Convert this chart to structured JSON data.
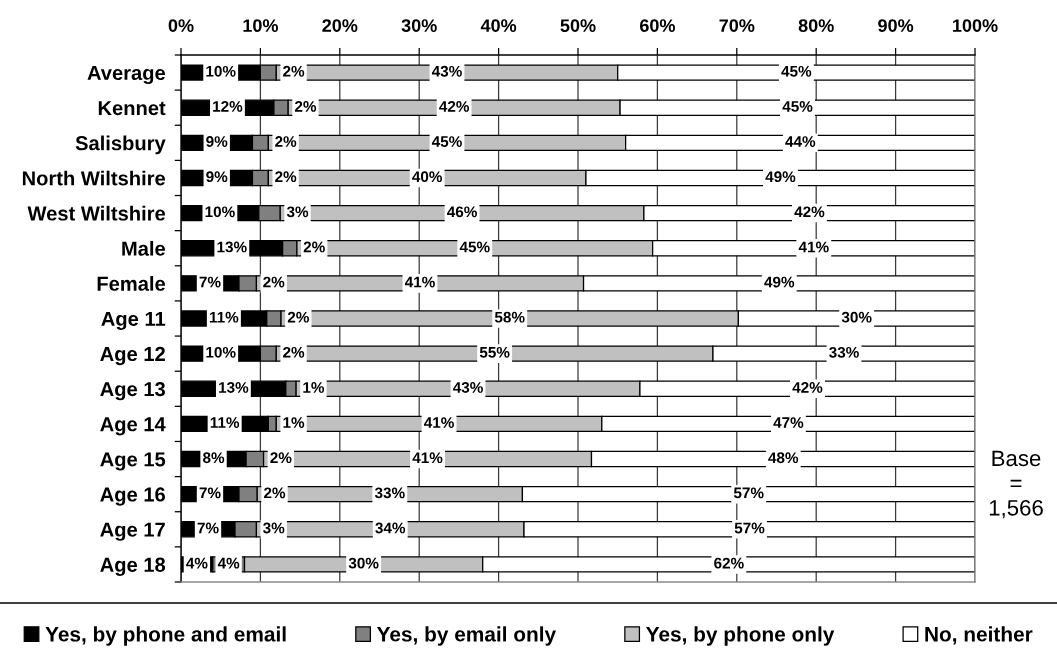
{
  "chart_data": {
    "type": "bar",
    "orientation": "horizontal",
    "stacked": true,
    "categories": [
      "Average",
      "Kennet",
      "Salisbury",
      "North Wiltshire",
      "West Wiltshire",
      "Male",
      "Female",
      "Age 11",
      "Age 12",
      "Age 13",
      "Age 14",
      "Age 15",
      "Age 16",
      "Age 17",
      "Age 18"
    ],
    "series": [
      {
        "name": "Yes, by phone and email",
        "color": "#000000",
        "values": [
          10,
          11.7,
          9,
          9,
          9.8,
          12.8,
          7.3,
          10.8,
          10,
          13.2,
          11,
          8.2,
          7.3,
          6.8,
          4
        ],
        "value_labels": [
          "10%",
          "12%",
          "9%",
          "9%",
          "10%",
          "13%",
          "7%",
          "11%",
          "10%",
          "13%",
          "11%",
          "8%",
          "7%",
          "7%",
          "4%"
        ]
      },
      {
        "name": "Yes, by email only",
        "color": "#808080",
        "values": [
          2,
          1.8,
          2,
          2,
          2.7,
          1.8,
          2.2,
          1.8,
          2,
          1.3,
          1,
          2.2,
          2.3,
          2.7,
          4
        ],
        "value_labels": [
          "2%",
          "2%",
          "2%",
          "2%",
          "3%",
          "2%",
          "2%",
          "2%",
          "2%",
          "1%",
          "1%",
          "2%",
          "2%",
          "3%",
          "4%"
        ]
      },
      {
        "name": "Yes, by phone only",
        "color": "#c0c0c0",
        "values": [
          43,
          41.8,
          45,
          40,
          45.8,
          44.8,
          41.2,
          57.6,
          55,
          43.3,
          41,
          41.3,
          33.4,
          33.7,
          30
        ],
        "value_labels": [
          "43%",
          "42%",
          "45%",
          "40%",
          "46%",
          "45%",
          "41%",
          "58%",
          "55%",
          "43%",
          "41%",
          "41%",
          "33%",
          "34%",
          "30%"
        ]
      },
      {
        "name": "No, neither",
        "color": "#ffffff",
        "values": [
          45,
          44.7,
          44,
          49,
          41.7,
          40.6,
          49.3,
          29.8,
          33,
          42.2,
          47,
          48.3,
          57,
          56.8,
          62
        ],
        "value_labels": [
          "45%",
          "45%",
          "44%",
          "49%",
          "42%",
          "41%",
          "49%",
          "30%",
          "33%",
          "42%",
          "47%",
          "48%",
          "57%",
          "57%",
          "62%"
        ]
      }
    ],
    "xlim": [
      0,
      100
    ],
    "xticks": [
      {
        "value": 0,
        "label": "0%"
      },
      {
        "value": 10,
        "label": "10%"
      },
      {
        "value": 20,
        "label": "20%"
      },
      {
        "value": 30,
        "label": "30%"
      },
      {
        "value": 40,
        "label": "40%"
      },
      {
        "value": 50,
        "label": "50%"
      },
      {
        "value": 60,
        "label": "60%"
      },
      {
        "value": 70,
        "label": "70%"
      },
      {
        "value": 80,
        "label": "80%"
      },
      {
        "value": 90,
        "label": "90%"
      },
      {
        "value": 100,
        "label": "100%"
      }
    ],
    "grid": "x",
    "legend": "bottom",
    "annotations": [
      "Base\n=\n1,566"
    ]
  }
}
